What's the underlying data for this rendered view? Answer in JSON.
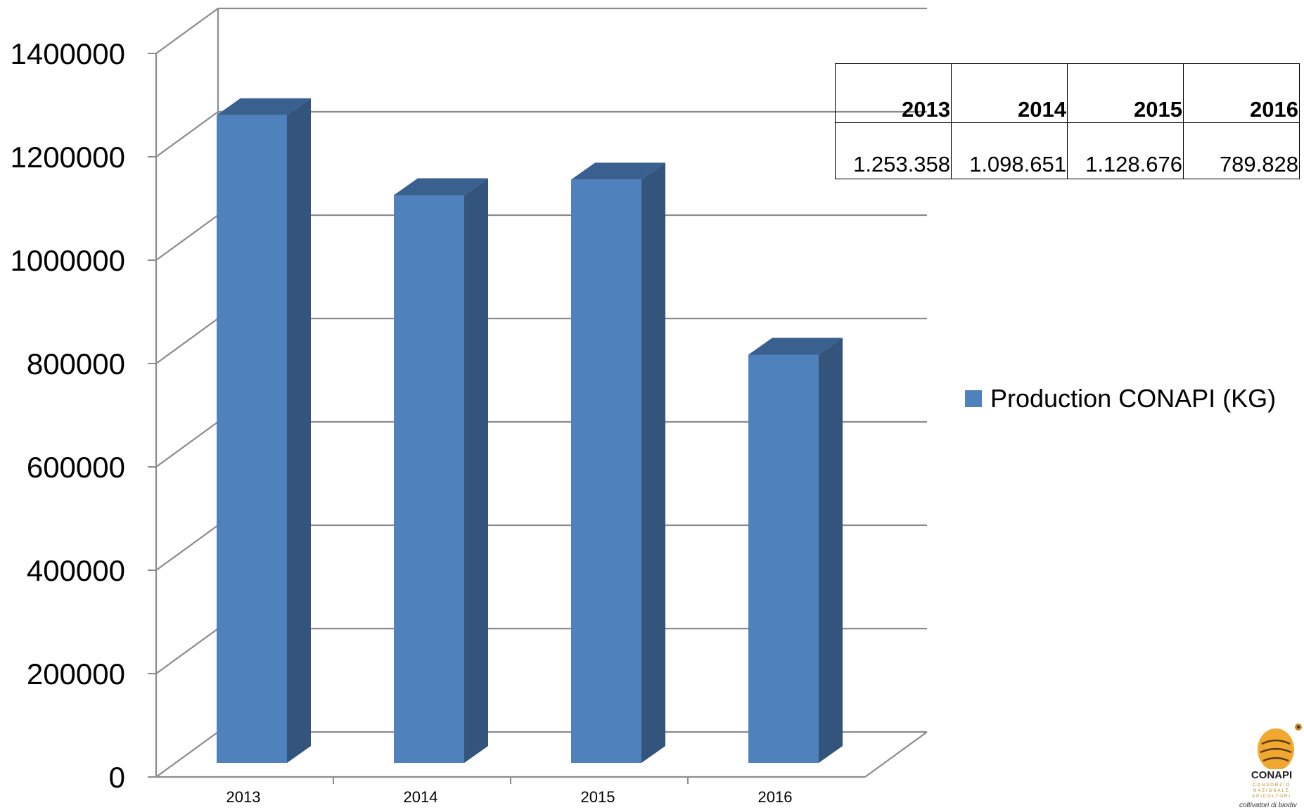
{
  "chart_data": {
    "type": "bar",
    "categories": [
      "2013",
      "2014",
      "2015",
      "2016"
    ],
    "series": [
      {
        "name": "Production CONAPI (KG)",
        "values": [
          1253358,
          1098651,
          1128676,
          789828
        ]
      }
    ],
    "yticks": [
      "0",
      "200000",
      "400000",
      "600000",
      "800000",
      "1000000",
      "1200000",
      "1400000"
    ],
    "ylim": [
      0,
      1400000
    ],
    "grid": true,
    "legend_position": "right",
    "colors": {
      "bar_front": "#4f81bd",
      "bar_side": "#33547b",
      "bar_top": "#3a6090",
      "grid": "#8c8c8c"
    },
    "table": {
      "headers": [
        "2013",
        "2014",
        "2015",
        "2016"
      ],
      "values": [
        "1.253.358",
        "1.098.651",
        "1.128.676",
        "789.828"
      ]
    }
  },
  "legend": {
    "label": "Production CONAPI (KG)"
  },
  "logo": {
    "word": "CONAPI",
    "sub1": "CONSORZIO",
    "sub2": "NAZIONALE",
    "sub3": "APICOLTORI",
    "tagline": "coltivatori di biodiv"
  }
}
